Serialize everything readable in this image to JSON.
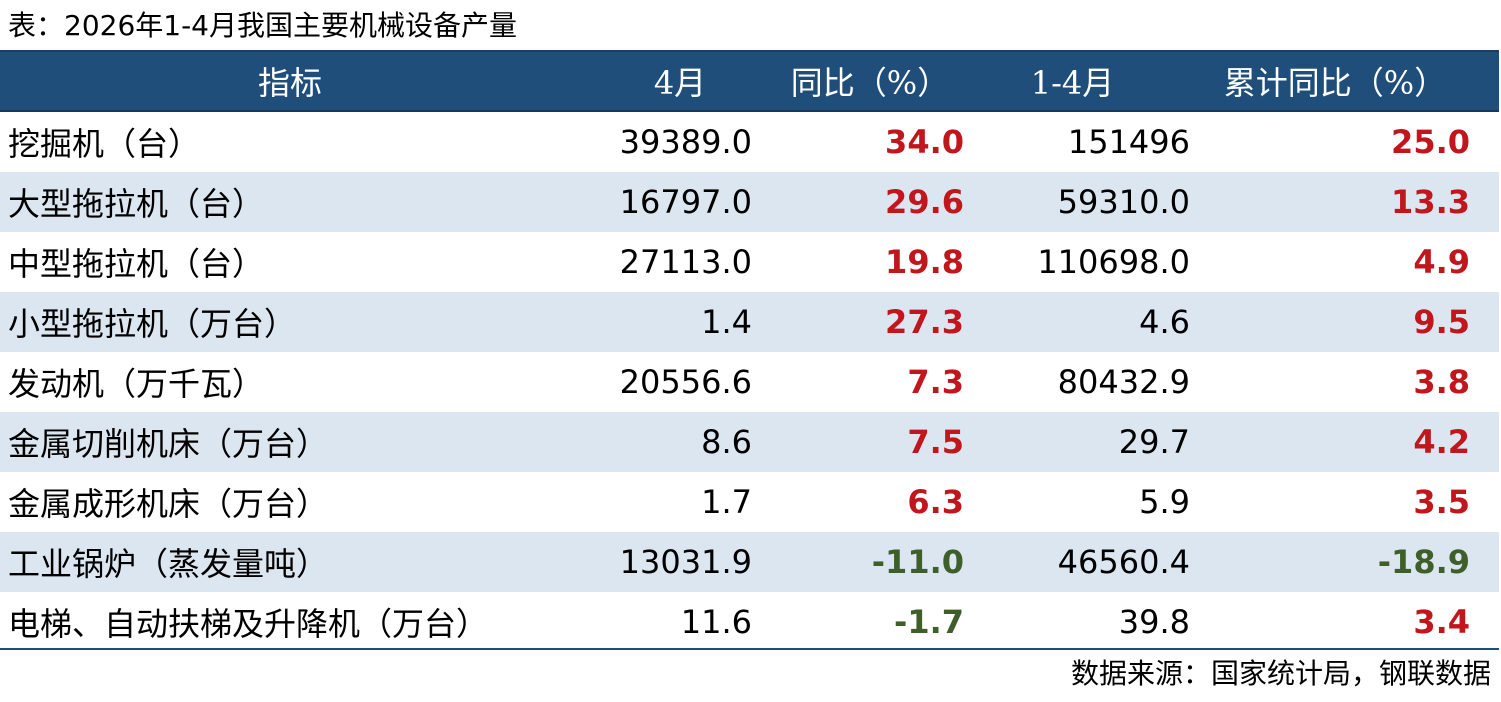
{
  "title": "表：2026年1-4月我国主要机械设备产量",
  "headers": [
    "指标",
    "4月",
    "同比（%）",
    "1-4月",
    "累计同比（%）"
  ],
  "rows": [
    {
      "name": "挖掘机（台）",
      "apr": "39389.0",
      "yoy": "34.0",
      "ytd": "151496",
      "ytd_yoy": "25.0",
      "yoy_sign": "pos",
      "ytd_sign": "pos"
    },
    {
      "name": "大型拖拉机（台）",
      "apr": "16797.0",
      "yoy": "29.6",
      "ytd": "59310.0",
      "ytd_yoy": "13.3",
      "yoy_sign": "pos",
      "ytd_sign": "pos"
    },
    {
      "name": "中型拖拉机（台）",
      "apr": "27113.0",
      "yoy": "19.8",
      "ytd": "110698.0",
      "ytd_yoy": "4.9",
      "yoy_sign": "pos",
      "ytd_sign": "pos"
    },
    {
      "name": "小型拖拉机（万台）",
      "apr": "1.4",
      "yoy": "27.3",
      "ytd": "4.6",
      "ytd_yoy": "9.5",
      "yoy_sign": "pos",
      "ytd_sign": "pos"
    },
    {
      "name": "发动机（万千瓦）",
      "apr": "20556.6",
      "yoy": "7.3",
      "ytd": "80432.9",
      "ytd_yoy": "3.8",
      "yoy_sign": "pos",
      "ytd_sign": "pos"
    },
    {
      "name": "金属切削机床（万台）",
      "apr": "8.6",
      "yoy": "7.5",
      "ytd": "29.7",
      "ytd_yoy": "4.2",
      "yoy_sign": "pos",
      "ytd_sign": "pos"
    },
    {
      "name": "金属成形机床（万台）",
      "apr": "1.7",
      "yoy": "6.3",
      "ytd": "5.9",
      "ytd_yoy": "3.5",
      "yoy_sign": "pos",
      "ytd_sign": "pos"
    },
    {
      "name": "工业锅炉（蒸发量吨）",
      "apr": "13031.9",
      "yoy": "-11.0",
      "ytd": "46560.4",
      "ytd_yoy": "-18.9",
      "yoy_sign": "neg",
      "ytd_sign": "neg"
    },
    {
      "name": "电梯、自动扶梯及升降机（万台）",
      "apr": "11.6",
      "yoy": "-1.7",
      "ytd": "39.8",
      "ytd_yoy": "3.4",
      "yoy_sign": "neg",
      "ytd_sign": "pos"
    }
  ],
  "colors": {
    "header_bg": "#1f4e7a",
    "positive": "#c0161c",
    "negative": "#3f5f2a",
    "stripe": "#dce6f0"
  },
  "source": "数据来源：国家统计局，钢联数据"
}
